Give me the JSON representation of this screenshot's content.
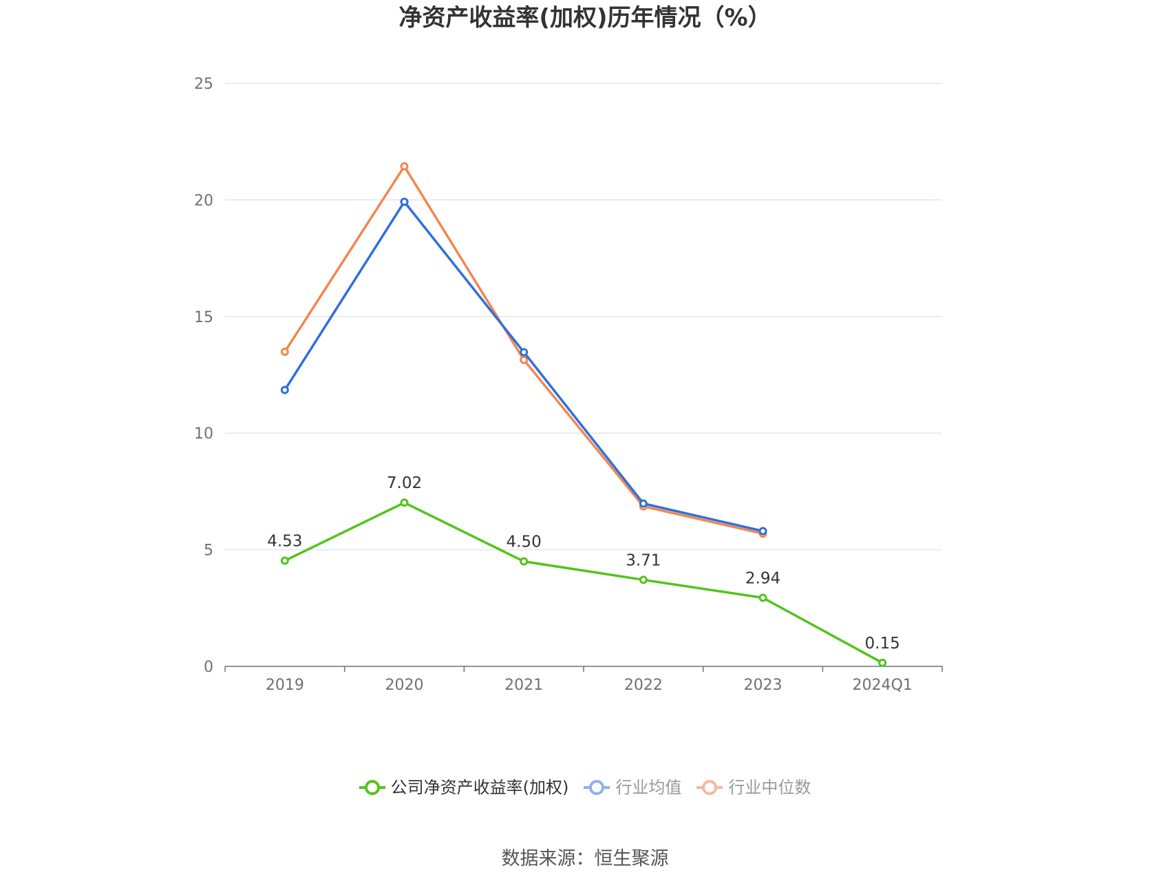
{
  "chart_data": {
    "type": "line",
    "title": "净资产收益率(加权)历年情况（%）",
    "xlabel": "",
    "ylabel": "",
    "categories": [
      "2019",
      "2020",
      "2021",
      "2022",
      "2023",
      "2024Q1"
    ],
    "ylim": [
      0,
      25
    ],
    "yticks": [
      0,
      5,
      10,
      15,
      20,
      25
    ],
    "grid": true,
    "legend_position": "bottom",
    "series": [
      {
        "name": "公司净资产收益率(加权)",
        "color": "#52c41a",
        "values": [
          4.53,
          7.02,
          4.5,
          3.71,
          2.94,
          0.15
        ],
        "labels": [
          "4.53",
          "7.02",
          "4.50",
          "3.71",
          "2.94",
          "0.15"
        ]
      },
      {
        "name": "行业均值",
        "color": "#2f6fde",
        "values": [
          11.85,
          19.92,
          13.47,
          6.98,
          5.8,
          null
        ]
      },
      {
        "name": "行业中位数",
        "color": "#f2874f",
        "values": [
          13.49,
          21.44,
          13.14,
          6.86,
          5.69,
          null
        ]
      }
    ]
  },
  "legend": {
    "items": [
      {
        "label": "公司净资产收益率(加权)",
        "color": "#52c41a",
        "text_color": "#333333"
      },
      {
        "label": "行业均值",
        "color": "#8fb0ee",
        "text_color": "#999999"
      },
      {
        "label": "行业中位数",
        "color": "#f7b899",
        "text_color": "#999999"
      }
    ]
  },
  "source": "数据来源：恒生聚源"
}
